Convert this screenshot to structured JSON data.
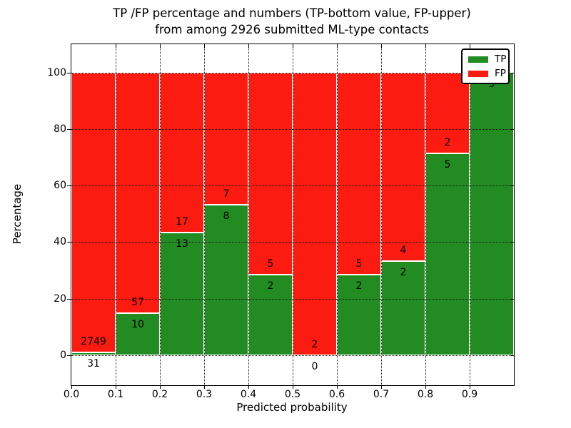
{
  "figure": {
    "title_line1": "TP /FP percentage and numbers (TP-bottom value, FP-upper)",
    "title_line2": "from among 2926 submitted ML-type contacts",
    "xlabel": "Predicted probability",
    "ylabel": "Percentage"
  },
  "legend": {
    "items": [
      {
        "label": "TP",
        "color": "#228b22"
      },
      {
        "label": "FP",
        "color": "#fb1b10"
      }
    ]
  },
  "chart_data": {
    "type": "bar",
    "stacked": true,
    "normalized": "percent of bin total (TP bottom, FP top)",
    "title": "TP /FP percentage and numbers (TP-bottom value, FP-upper) from among 2926 submitted ML-type contacts",
    "xlabel": "Predicted probability",
    "ylabel": "Percentage",
    "total_contacts": 2926,
    "bin_width": 0.1,
    "categories": [
      "0.0-0.1",
      "0.1-0.2",
      "0.2-0.3",
      "0.3-0.4",
      "0.4-0.5",
      "0.5-0.6",
      "0.6-0.7",
      "0.7-0.8",
      "0.8-0.9",
      "0.9-1.0"
    ],
    "xtick_labels": [
      "0.0",
      "0.1",
      "0.2",
      "0.3",
      "0.4",
      "0.5",
      "0.6",
      "0.7",
      "0.8",
      "0.9"
    ],
    "ytick_values": [
      0,
      20,
      40,
      60,
      80,
      100
    ],
    "ylim": [
      -10.6,
      110
    ],
    "grid": "dotted black vertical at each 0.1 and horizontal at each 20",
    "legend_position": "upper right",
    "series": [
      {
        "name": "TP",
        "color": "#228b22",
        "counts": [
          31,
          10,
          13,
          8,
          2,
          0,
          2,
          2,
          5,
          5
        ],
        "percent": [
          1.1,
          14.9,
          43.3,
          53.3,
          28.6,
          0.0,
          28.6,
          33.3,
          71.4,
          100.0
        ]
      },
      {
        "name": "FP",
        "color": "#fb1b10",
        "counts": [
          2749,
          57,
          17,
          7,
          5,
          2,
          5,
          4,
          2,
          0
        ],
        "percent": [
          98.9,
          85.1,
          56.7,
          46.7,
          71.4,
          100.0,
          71.4,
          66.7,
          28.6,
          0.0
        ]
      }
    ],
    "bar_value_labels": {
      "tp": [
        "31",
        "10",
        "13",
        "8",
        "2",
        "0",
        "2",
        "2",
        "5",
        "5"
      ],
      "fp": [
        "2749",
        "57",
        "17",
        "7",
        "5",
        "2",
        "5",
        "4",
        "2",
        ""
      ]
    }
  }
}
